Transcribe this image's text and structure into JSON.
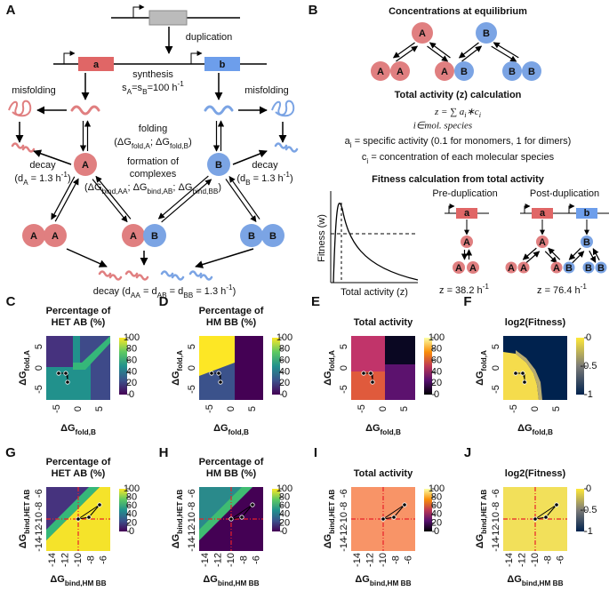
{
  "panel_a": {
    "label": "A",
    "duplication": "duplication",
    "gene_a": "a",
    "gene_b": "b",
    "synthesis": "synthesis",
    "synthesis_rate": [
      {
        "text": "s"
      },
      {
        "text": "A",
        "style": "sub"
      },
      {
        "text": "=s"
      },
      {
        "text": "B",
        "style": "sub"
      },
      {
        "text": "=100 h"
      },
      {
        "text": "-1",
        "style": "sup"
      }
    ],
    "misfolding_left": "misfolding",
    "misfolding_right": "misfolding",
    "folding": "folding",
    "folding_params": [
      {
        "text": "(ΔG"
      },
      {
        "text": "fold,A",
        "style": "sub"
      },
      {
        "text": "; ΔG"
      },
      {
        "text": "fold,B",
        "style": "sub"
      },
      {
        "text": ")"
      }
    ],
    "monomer_a": "A",
    "monomer_b": "B",
    "complexes_line1": "formation of",
    "complexes_line2": "complexes",
    "complexes_params": [
      {
        "text": "(ΔG"
      },
      {
        "text": "bind,AA",
        "style": "sub"
      },
      {
        "text": "; ΔG"
      },
      {
        "text": "bind,AB",
        "style": "sub"
      },
      {
        "text": "; ΔG"
      },
      {
        "text": "bind,BB",
        "style": "sub"
      },
      {
        "text": ")"
      }
    ],
    "decay_left": "decay",
    "decay_left_rate": [
      {
        "text": "(d"
      },
      {
        "text": "A",
        "style": "sub"
      },
      {
        "text": " = 1.3 h"
      },
      {
        "text": "-1",
        "style": "sup"
      },
      {
        "text": ")"
      }
    ],
    "decay_right": "decay",
    "decay_right_rate": [
      {
        "text": "(d"
      },
      {
        "text": "B",
        "style": "sub"
      },
      {
        "text": " = 1.3 h"
      },
      {
        "text": "-1",
        "style": "sup"
      },
      {
        "text": ")"
      }
    ],
    "dimers": [
      [
        "A",
        "A"
      ],
      [
        "A",
        "B"
      ],
      [
        "B",
        "B"
      ]
    ],
    "decay_dimers": [
      {
        "text": "decay (d"
      },
      {
        "text": "AA",
        "style": "sub"
      },
      {
        "text": " = d"
      },
      {
        "text": "AB",
        "style": "sub"
      },
      {
        "text": " = d"
      },
      {
        "text": "BB",
        "style": "sub"
      },
      {
        "text": " = 1.3 h"
      },
      {
        "text": "-1",
        "style": "sup"
      },
      {
        "text": ")"
      }
    ]
  },
  "panel_b": {
    "label": "B",
    "concentration_title": "Concentrations at equilibrium",
    "monomers": [
      "A",
      "B"
    ],
    "dimers": [
      [
        "A",
        "A"
      ],
      [
        "A",
        "B"
      ],
      [
        "B",
        "B"
      ]
    ],
    "activity_title": "Total activity (z) calculation",
    "formula": [
      {
        "text": "z = ∑ a"
      },
      {
        "text": "i",
        "style": "sub"
      },
      {
        "text": "∗c"
      },
      {
        "text": "i",
        "style": "sub"
      }
    ],
    "formula_index": "i∈mol. species",
    "a_definition": [
      {
        "text": "a"
      },
      {
        "text": "i",
        "style": "sub"
      },
      {
        "text": " = specific activity (0.1 for monomers, 1 for dimers)"
      }
    ],
    "c_definition": [
      {
        "text": "c"
      },
      {
        "text": "i",
        "style": "sub"
      },
      {
        "text": " = concentration of each molecular species"
      }
    ],
    "fitness_title": "Fitness calculation from total activity",
    "plot_y_label": "Fitness (w)",
    "plot_x_label": "Total activity (z)",
    "pre_title": "Pre-duplication",
    "post_title": "Post-duplication",
    "pre_gene": "a",
    "post_genes": [
      "a",
      "b"
    ],
    "pre_monomer": "A",
    "pre_dimer": [
      "A",
      "A"
    ],
    "post_monomers": [
      "A",
      "B"
    ],
    "post_dimers": [
      [
        "A",
        "A"
      ],
      [
        "A",
        "B"
      ],
      [
        "B",
        "B"
      ]
    ],
    "z_pre": [
      {
        "text": "z = 38.2 h"
      },
      {
        "text": "-1",
        "style": "sup"
      }
    ],
    "z_post": [
      {
        "text": "z = 76.4 h"
      },
      {
        "text": "-1",
        "style": "sup"
      }
    ]
  },
  "heatmaps": [
    {
      "label": "C",
      "title": [
        "Percentage of",
        "HET AB (%)"
      ],
      "y_label": [
        {
          "text": "ΔG"
        },
        {
          "text": "fold,A",
          "style": "sub"
        }
      ],
      "x_label": [
        {
          "text": "ΔG"
        },
        {
          "text": "fold,B",
          "style": "sub"
        }
      ],
      "y_ticks": [
        "5",
        "0",
        "-5"
      ],
      "x_ticks": [
        "-5",
        "0",
        "5"
      ],
      "colorbar_ticks": [
        "100",
        "80",
        "60",
        "40",
        "20",
        "0"
      ]
    },
    {
      "label": "D",
      "title": [
        "Percentage of",
        "HM BB (%)"
      ],
      "y_label": [
        {
          "text": "ΔG"
        },
        {
          "text": "fold,A",
          "style": "sub"
        }
      ],
      "x_label": [
        {
          "text": "ΔG"
        },
        {
          "text": "fold,B",
          "style": "sub"
        }
      ],
      "y_ticks": [
        "5",
        "0",
        "-5"
      ],
      "x_ticks": [
        "-5",
        "0",
        "5"
      ],
      "colorbar_ticks": [
        "100",
        "80",
        "60",
        "40",
        "20",
        "0"
      ]
    },
    {
      "label": "E",
      "title": [
        "Total activity"
      ],
      "y_label": [
        {
          "text": "ΔG"
        },
        {
          "text": "fold,A",
          "style": "sub"
        }
      ],
      "x_label": [
        {
          "text": "ΔG"
        },
        {
          "text": "fold,B",
          "style": "sub"
        }
      ],
      "y_ticks": [
        "5",
        "0",
        "-5"
      ],
      "x_ticks": [
        "-5",
        "0",
        "5"
      ],
      "colorbar_ticks": [
        "100",
        "80",
        "60",
        "40",
        "20",
        "0"
      ]
    },
    {
      "label": "F",
      "title": [
        "log2(Fitness)"
      ],
      "y_label": [
        {
          "text": "ΔG"
        },
        {
          "text": "fold,A",
          "style": "sub"
        }
      ],
      "x_label": [
        {
          "text": "ΔG"
        },
        {
          "text": "fold,B",
          "style": "sub"
        }
      ],
      "y_ticks": [
        "5",
        "0",
        "-5"
      ],
      "x_ticks": [
        "-5",
        "0",
        "5"
      ],
      "colorbar_ticks": [
        "0",
        "-0.5",
        "-1"
      ]
    },
    {
      "label": "G",
      "title": [
        "Percentage of",
        "HET AB (%)"
      ],
      "y_label": [
        {
          "text": "ΔG"
        },
        {
          "text": "bind,HET AB",
          "style": "sub"
        }
      ],
      "x_label": [
        {
          "text": "ΔG"
        },
        {
          "text": "bind,HM BB",
          "style": "sub"
        }
      ],
      "y_ticks": [
        "-6",
        "-8",
        "-10",
        "-12",
        "-14"
      ],
      "x_ticks": [
        "-14",
        "-12",
        "-10",
        "-8",
        "-6"
      ],
      "colorbar_ticks": [
        "100",
        "80",
        "60",
        "40",
        "20",
        "0"
      ]
    },
    {
      "label": "H",
      "title": [
        "Percentage of",
        "HM BB (%)"
      ],
      "y_label": [
        {
          "text": "ΔG"
        },
        {
          "text": "bind,HET AB",
          "style": "sub"
        }
      ],
      "x_label": [
        {
          "text": "ΔG"
        },
        {
          "text": "bind,HM BB",
          "style": "sub"
        }
      ],
      "y_ticks": [
        "-6",
        "-8",
        "-10",
        "-12",
        "-14"
      ],
      "x_ticks": [
        "-14",
        "-12",
        "-10",
        "-8",
        "-6"
      ],
      "colorbar_ticks": [
        "100",
        "80",
        "60",
        "40",
        "20",
        "0"
      ]
    },
    {
      "label": "I",
      "title": [
        "Total activity"
      ],
      "y_label": [
        {
          "text": "ΔG"
        },
        {
          "text": "bind,HET AB",
          "style": "sub"
        }
      ],
      "x_label": [
        {
          "text": "ΔG"
        },
        {
          "text": "bind,HM BB",
          "style": "sub"
        }
      ],
      "y_ticks": [
        "-6",
        "-8",
        "-10",
        "-12",
        "-14"
      ],
      "x_ticks": [
        "-14",
        "-12",
        "-10",
        "-8",
        "-6"
      ],
      "colorbar_ticks": [
        "100",
        "80",
        "60",
        "40",
        "20",
        "0"
      ]
    },
    {
      "label": "J",
      "title": [
        "log2(Fitness)"
      ],
      "y_label": [
        {
          "text": "ΔG"
        },
        {
          "text": "bind,HET AB",
          "style": "sub"
        }
      ],
      "x_label": [
        {
          "text": "ΔG"
        },
        {
          "text": "bind,HM BB",
          "style": "sub"
        }
      ],
      "y_ticks": [
        "-6",
        "-8",
        "-10",
        "-12",
        "-14"
      ],
      "x_ticks": [
        "-14",
        "-12",
        "-10",
        "-8",
        "-6"
      ],
      "colorbar_ticks": [
        "0",
        "-0.5",
        "-1"
      ]
    }
  ]
}
